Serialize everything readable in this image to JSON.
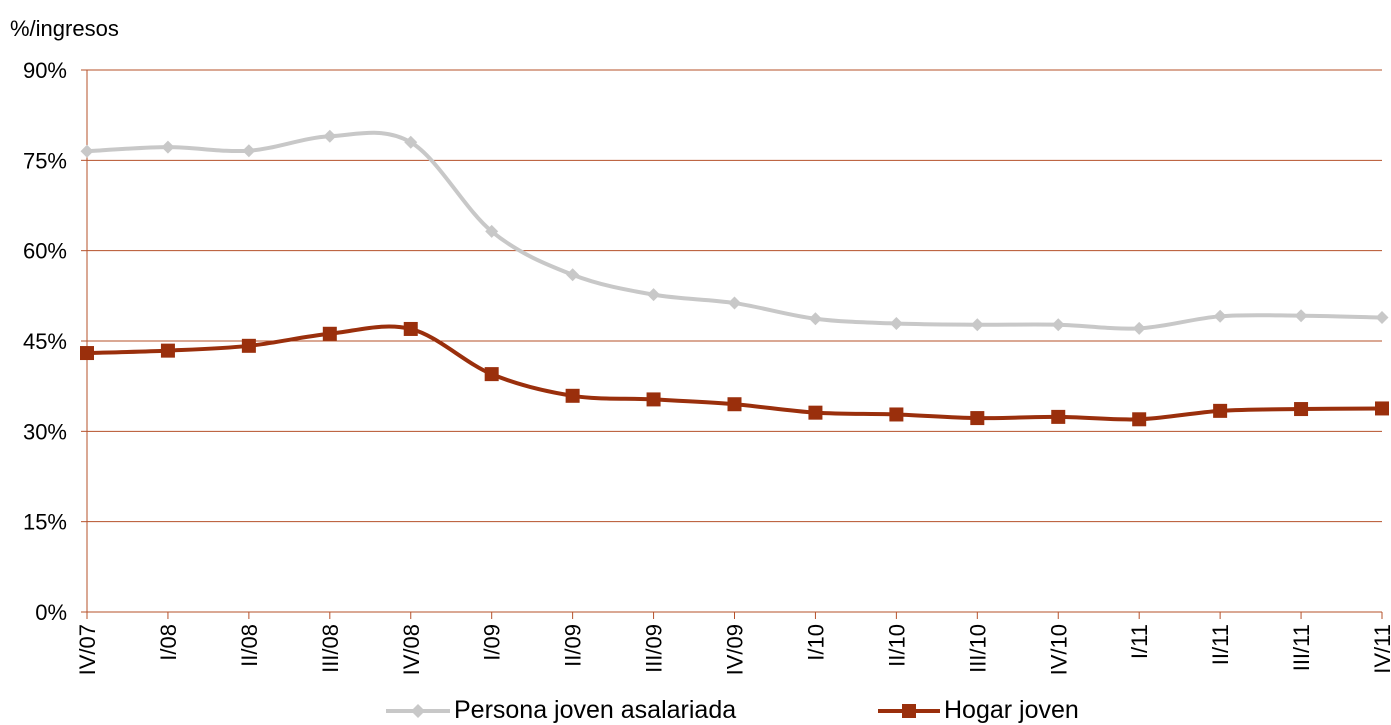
{
  "chart_data": {
    "type": "line",
    "ylabel": "%/ingresos",
    "ylim": [
      0,
      90
    ],
    "yticks": [
      "0%",
      "15%",
      "30%",
      "45%",
      "60%",
      "75%",
      "90%"
    ],
    "ytick_values": [
      0,
      15,
      30,
      45,
      60,
      75,
      90
    ],
    "categories": [
      "IV/07",
      "I/08",
      "II/08",
      "III/08",
      "IV/08",
      "I/09",
      "II/09",
      "III/09",
      "IV/09",
      "I/10",
      "II/10",
      "III/10",
      "IV/10",
      "I/11",
      "II/11",
      "III/11",
      "IV/11"
    ],
    "grid": true,
    "legend_position": "bottom",
    "series": [
      {
        "name": "Persona joven asalariada",
        "color": "#c8c8c8",
        "marker": "diamond",
        "values": [
          76.5,
          77.2,
          76.6,
          79.0,
          78.0,
          63.2,
          56.0,
          52.7,
          51.3,
          48.7,
          47.9,
          47.7,
          47.7,
          47.1,
          49.1,
          49.2,
          48.9
        ]
      },
      {
        "name": "Hogar joven",
        "color": "#9a2f0c",
        "marker": "square",
        "values": [
          43.0,
          43.4,
          44.2,
          46.2,
          47.0,
          39.5,
          35.9,
          35.3,
          34.5,
          33.1,
          32.8,
          32.2,
          32.4,
          32.0,
          33.4,
          33.7,
          33.8
        ]
      }
    ]
  }
}
